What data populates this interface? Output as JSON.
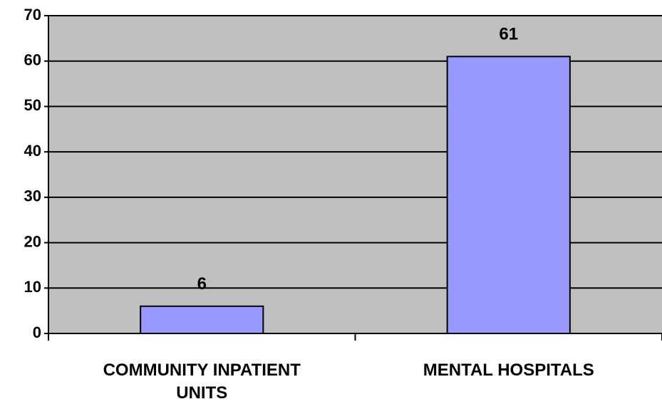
{
  "chart_data": {
    "type": "bar",
    "categories": [
      "COMMUNITY INPATIENT UNITS",
      "MENTAL HOSPITALS"
    ],
    "values": [
      6,
      61
    ],
    "color": "#9999ff",
    "ylim": [
      0,
      70
    ],
    "yticks": [
      0,
      10,
      20,
      30,
      40,
      50,
      60,
      70
    ],
    "grid": true
  }
}
